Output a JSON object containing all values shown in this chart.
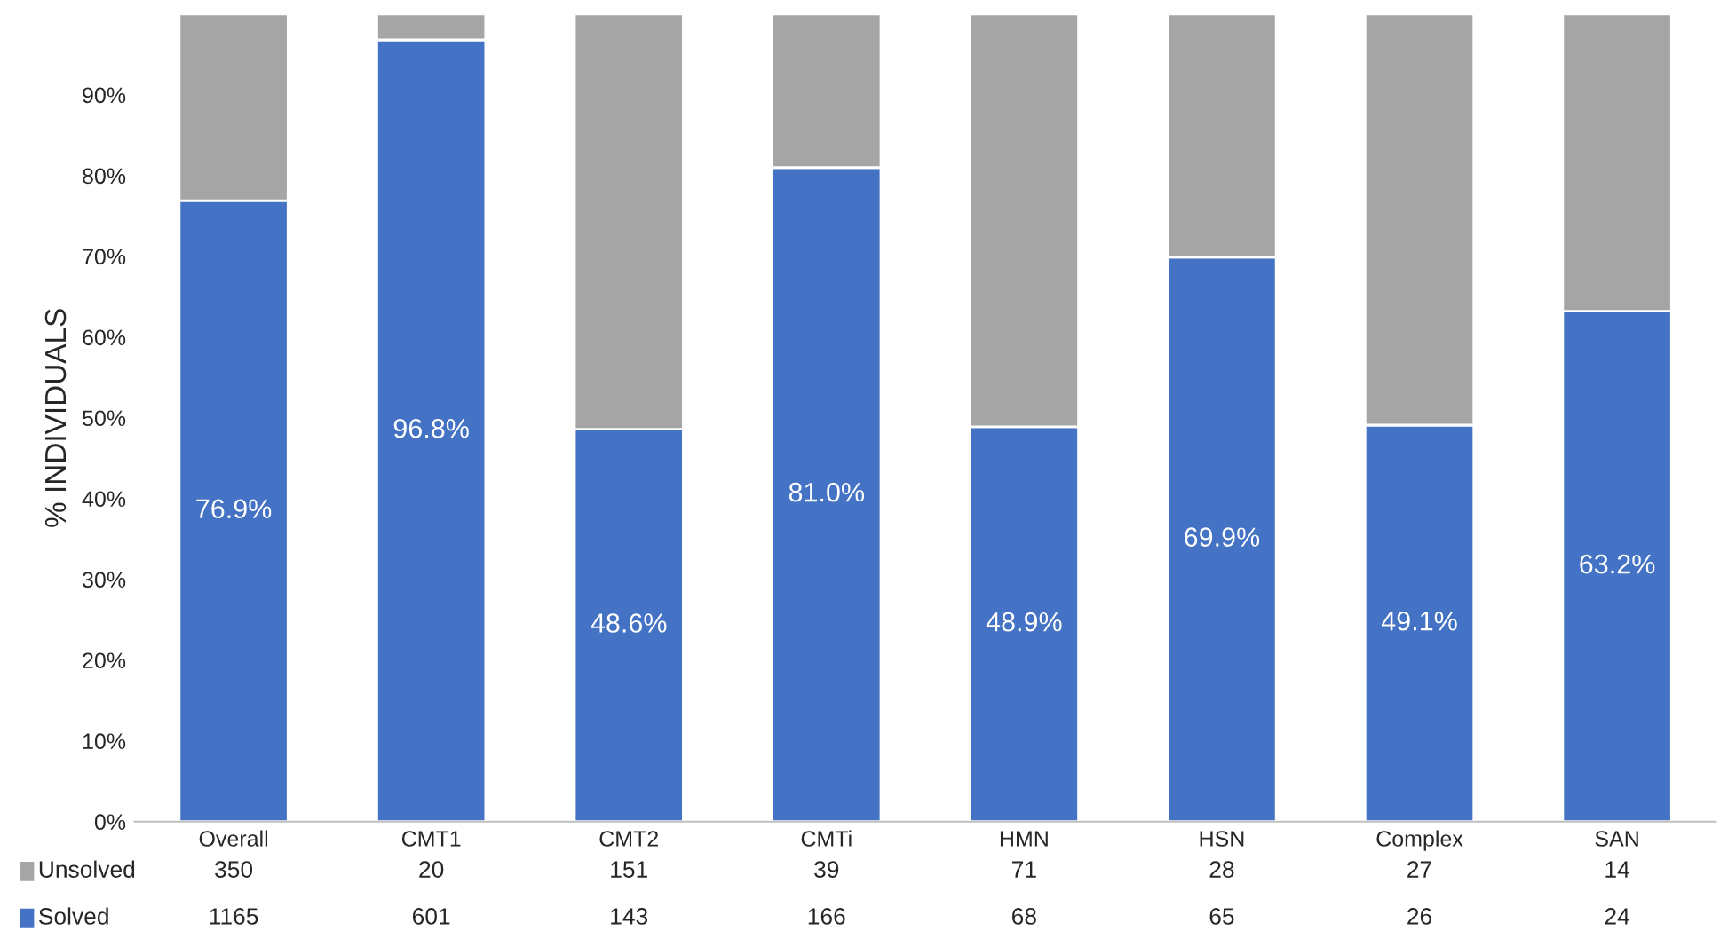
{
  "chart_data": {
    "type": "bar",
    "stacked": true,
    "ylabel": "% INDIVIDUALS",
    "categories": [
      "Overall",
      "CMT1",
      "CMT2",
      "CMTi",
      "HMN",
      "HSN",
      "Complex",
      "SAN"
    ],
    "series": [
      {
        "name": "Solved",
        "color": "#4472c4",
        "values": [
          76.9,
          96.8,
          48.6,
          81.0,
          48.9,
          69.9,
          49.1,
          63.2
        ],
        "value_labels": [
          "76.9%",
          "96.8%",
          "48.6%",
          "81.0%",
          "48.9%",
          "69.9%",
          "49.1%",
          "63.2%"
        ]
      },
      {
        "name": "Unsolved",
        "color": "#a5a5a5",
        "values": [
          23.1,
          3.2,
          51.4,
          19.0,
          51.1,
          30.1,
          50.9,
          36.8
        ]
      }
    ],
    "ylim": [
      0,
      100
    ],
    "yticks": [
      {
        "value": 0,
        "label": "0%"
      },
      {
        "value": 10,
        "label": "10%"
      },
      {
        "value": 20,
        "label": "20%"
      },
      {
        "value": 30,
        "label": "30%"
      },
      {
        "value": 40,
        "label": "40%"
      },
      {
        "value": 50,
        "label": "50%"
      },
      {
        "value": 60,
        "label": "60%"
      },
      {
        "value": 70,
        "label": "70%"
      },
      {
        "value": 80,
        "label": "80%"
      },
      {
        "value": 90,
        "label": "90%"
      }
    ],
    "grid": false,
    "legend": "bottom",
    "annotations": [
      "350",
      "20",
      "151",
      "39",
      "71",
      "28",
      "27",
      "14",
      "1165",
      "601",
      "143",
      "166",
      "68",
      "65",
      "26",
      "24"
    ]
  }
}
